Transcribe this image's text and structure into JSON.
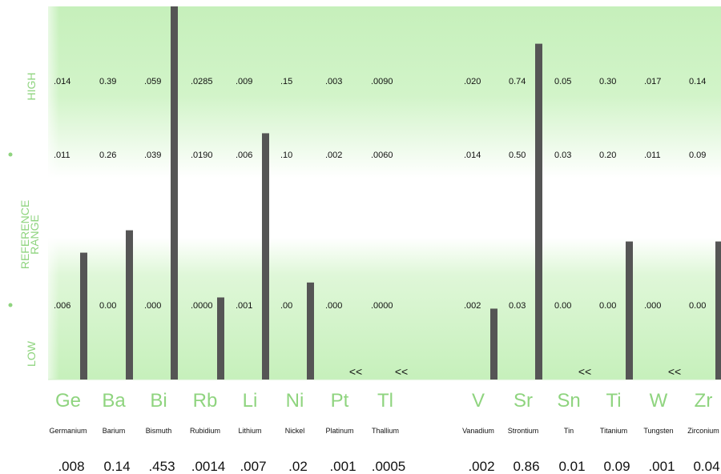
{
  "chart_data": {
    "type": "bar",
    "axis_labels": {
      "high": "HIGH",
      "reference": "REFERENCE",
      "range": "RANGE",
      "low": "LOW"
    },
    "colors": {
      "band": "#c6f0bb",
      "band_light": "#e6f9e1",
      "label": "#8fd47f",
      "bar": "#555555"
    },
    "elements": [
      {
        "symbol": "Ge",
        "name": "Germanium",
        "result": ".008",
        "high": ".014",
        "ref": ".011",
        "low": ".006",
        "level": 0.34,
        "below_arrow": ""
      },
      {
        "symbol": "Ba",
        "name": "Barium",
        "result": "0.14",
        "high": "0.39",
        "ref": "0.26",
        "low": "0.00",
        "level": 0.4,
        "below_arrow": ""
      },
      {
        "symbol": "Bi",
        "name": "Bismuth",
        "result": ".453",
        "high": ".059",
        "ref": ".039",
        "low": ".000",
        "level": 1.0,
        "below_arrow": ""
      },
      {
        "symbol": "Rb",
        "name": "Rubidium",
        "result": ".0014",
        "high": ".0285",
        "ref": ".0190",
        "low": ".0000",
        "level": 0.22,
        "below_arrow": ""
      },
      {
        "symbol": "Li",
        "name": "Lithium",
        "result": ".007",
        "high": ".009",
        "ref": ".006",
        "low": ".001",
        "level": 0.66,
        "below_arrow": ""
      },
      {
        "symbol": "Ni",
        "name": "Nickel",
        "result": ".02",
        "high": ".15",
        "ref": ".10",
        "low": ".00",
        "level": 0.26,
        "below_arrow": ""
      },
      {
        "symbol": "Pt",
        "name": "Platinum",
        "result": ".001",
        "high": ".003",
        "ref": ".002",
        "low": ".000",
        "level": 0,
        "below_arrow": "<<"
      },
      {
        "symbol": "Tl",
        "name": "Thallium",
        "result": ".0005",
        "high": ".0090",
        "ref": ".0060",
        "low": ".0000",
        "level": 0,
        "below_arrow": "<<"
      },
      {
        "symbol": "V",
        "name": "Vanadium",
        "result": ".002",
        "high": ".020",
        "ref": ".014",
        "low": ".002",
        "level": 0.19,
        "below_arrow": ""
      },
      {
        "symbol": "Sr",
        "name": "Strontium",
        "result": "0.86",
        "high": "0.74",
        "ref": "0.50",
        "low": "0.03",
        "level": 0.9,
        "below_arrow": ""
      },
      {
        "symbol": "Sn",
        "name": "Tin",
        "result": "0.01",
        "high": "0.05",
        "ref": "0.03",
        "low": "0.00",
        "level": 0,
        "below_arrow": "<<"
      },
      {
        "symbol": "Ti",
        "name": "Titanium",
        "result": "0.09",
        "high": "0.30",
        "ref": "0.20",
        "low": "0.00",
        "level": 0.37,
        "below_arrow": ""
      },
      {
        "symbol": "W",
        "name": "Tungsten",
        "result": ".001",
        "high": ".017",
        "ref": ".011",
        "low": ".000",
        "level": 0,
        "below_arrow": "<<"
      },
      {
        "symbol": "Zr",
        "name": "Zirconium",
        "result": "0.04",
        "high": "0.14",
        "ref": "0.09",
        "low": "0.00",
        "level": 0.37,
        "below_arrow": ""
      }
    ]
  }
}
